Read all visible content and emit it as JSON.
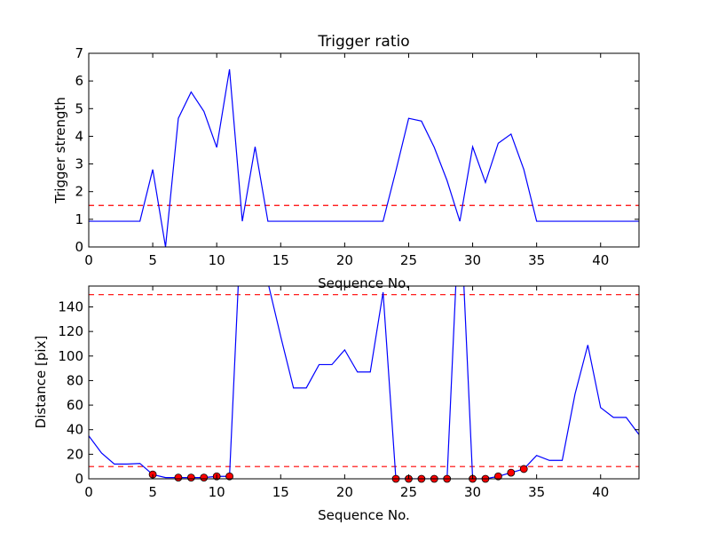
{
  "chart_data": [
    {
      "type": "line",
      "title": "Trigger ratio",
      "xlabel": "Sequence No.",
      "ylabel": "Trigger strength",
      "xlim": [
        0,
        43
      ],
      "ylim": [
        0,
        7
      ],
      "xticks": [
        0,
        5,
        10,
        15,
        20,
        25,
        30,
        35,
        40
      ],
      "yticks": [
        0,
        1,
        2,
        3,
        4,
        5,
        6,
        7
      ],
      "grid": false,
      "series": [
        {
          "color": "#0000ff",
          "style": "solid",
          "x": [
            0,
            1,
            2,
            3,
            4,
            5,
            6,
            7,
            8,
            9,
            10,
            11,
            12,
            13,
            14,
            15,
            16,
            17,
            18,
            19,
            20,
            21,
            22,
            23,
            24,
            25,
            26,
            27,
            28,
            29,
            30,
            31,
            32,
            33,
            34,
            35,
            36,
            37,
            38,
            39,
            40,
            41,
            42,
            43
          ],
          "y": [
            0.93,
            0.93,
            0.93,
            0.93,
            0.93,
            2.8,
            0,
            4.65,
            5.6,
            4.9,
            3.6,
            6.42,
            0.93,
            3.62,
            0.93,
            0.93,
            0.93,
            0.93,
            0.93,
            0.93,
            0.93,
            0.93,
            0.93,
            0.93,
            2.75,
            4.65,
            4.55,
            3.6,
            2.4,
            0.93,
            3.62,
            2.33,
            3.75,
            4.08,
            2.8,
            0.93,
            0.93,
            0.93,
            0.93,
            0.93,
            0.93,
            0.93,
            0.93,
            0.93
          ]
        }
      ],
      "hlines": [
        {
          "y": 1.5,
          "color": "#ff0000",
          "style": "dashed"
        }
      ]
    },
    {
      "type": "line",
      "title": "",
      "xlabel": "Sequence No.",
      "ylabel": "Distance [pix]",
      "xlim": [
        0,
        43
      ],
      "ylim": [
        0,
        157
      ],
      "xticks": [
        0,
        5,
        10,
        15,
        20,
        25,
        30,
        35,
        40
      ],
      "yticks": [
        0,
        20,
        40,
        60,
        80,
        100,
        120,
        140
      ],
      "grid": false,
      "series": [
        {
          "color": "#0000ff",
          "style": "solid",
          "x": [
            0,
            1,
            2,
            3,
            4,
            5,
            6,
            7,
            8,
            9,
            10,
            11,
            12,
            13,
            14,
            15,
            16,
            17,
            18,
            19,
            20,
            21,
            22,
            23,
            24,
            25,
            26,
            27,
            28,
            29,
            30,
            31,
            32,
            33,
            34,
            35,
            36,
            37,
            38,
            39,
            40,
            41,
            42,
            43
          ],
          "y": [
            35,
            21,
            12,
            12,
            12.5,
            3.5,
            1,
            1,
            1,
            1,
            2,
            2,
            230,
            200,
            160,
            116,
            74,
            74,
            93,
            93,
            105,
            87,
            87,
            152,
            0,
            0,
            0,
            0,
            0,
            230,
            0,
            0,
            2,
            5,
            8,
            19,
            15,
            15,
            69,
            109,
            58,
            50,
            50,
            36
          ]
        }
      ],
      "markers": {
        "color": "#ff0000",
        "x": [
          5,
          7,
          8,
          9,
          10,
          11,
          24,
          25,
          26,
          27,
          28,
          30,
          31,
          32,
          33,
          34
        ],
        "y": [
          3.5,
          1,
          1,
          1,
          2,
          2,
          0,
          0,
          0,
          0,
          0,
          0,
          0,
          2,
          5,
          8
        ]
      },
      "hlines": [
        {
          "y": 150,
          "color": "#ff0000",
          "style": "dashed"
        },
        {
          "y": 10,
          "color": "#ff0000",
          "style": "dashed"
        }
      ]
    }
  ]
}
